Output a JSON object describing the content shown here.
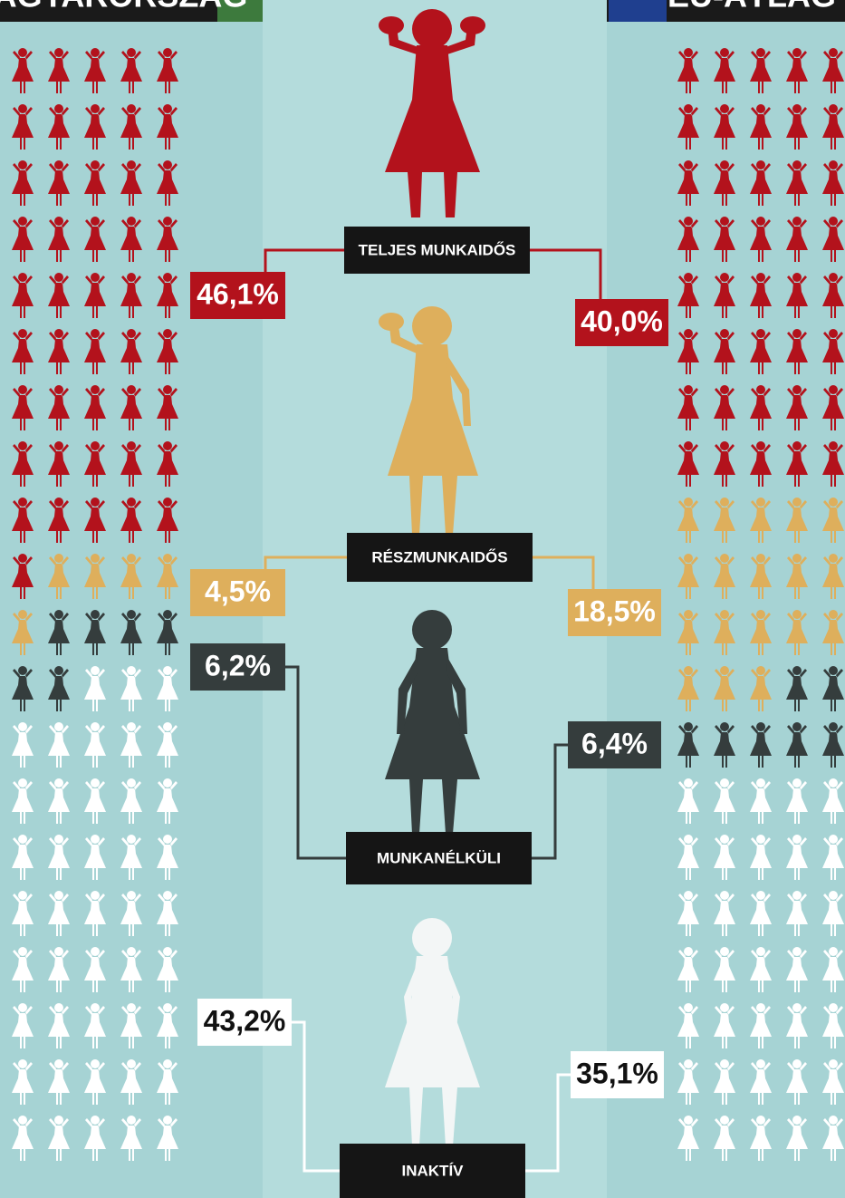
{
  "chart_data": {
    "type": "pictogram",
    "categories": [
      "TELJES MUNKAIDŐS",
      "RÉSZMUNKAIDŐS",
      "MUNKANÉLKÜLI",
      "INAKTÍV"
    ],
    "colors": [
      "#b3121c",
      "#deaf5c",
      "#353d3d",
      "#ffffff"
    ],
    "series": [
      {
        "name": "MAGYARORSZÁG",
        "values": [
          46.1,
          4.5,
          6.2,
          43.2
        ],
        "value_labels": [
          "46,1%",
          "4,5%",
          "6,2%",
          "43,2%"
        ]
      },
      {
        "name": "EU-ÁTLAG",
        "values": [
          40.0,
          18.5,
          6.4,
          35.1
        ],
        "value_labels": [
          "40,0%",
          "18,5%",
          "6,4%",
          "35,1%"
        ]
      }
    ]
  }
}
